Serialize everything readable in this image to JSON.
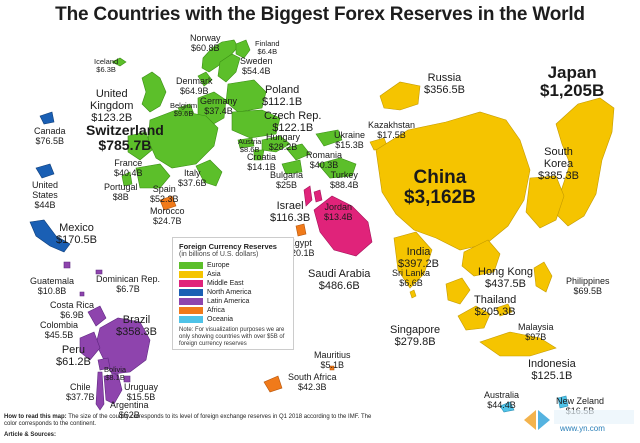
{
  "title": "The Countries with the Biggest Forex Reserves in the World",
  "legend": {
    "title": "Foreign Currency Reserves",
    "subtitle": "(in billions of U.S. dollars)",
    "items": [
      {
        "label": "Europe",
        "color": "#5cbf2a"
      },
      {
        "label": "Asia",
        "color": "#f5c400"
      },
      {
        "label": "Middle East",
        "color": "#e0237a"
      },
      {
        "label": "North America",
        "color": "#1a5fb4"
      },
      {
        "label": "Latin America",
        "color": "#8e44ad"
      },
      {
        "label": "Africa",
        "color": "#f07a1a"
      },
      {
        "label": "Oceania",
        "color": "#4fc3e8"
      }
    ],
    "note": "Note: For visualization purposes we are only showing countries with over $5B of foreign currency reserves"
  },
  "countries": [
    {
      "id": "norway",
      "name": "Norway",
      "value": "$60.8B"
    },
    {
      "id": "finland",
      "name": "Finland",
      "value": "$6.4B"
    },
    {
      "id": "iceland",
      "name": "Iceland",
      "value": "$6.3B"
    },
    {
      "id": "sweden",
      "name": "Sweden",
      "value": "$54.4B"
    },
    {
      "id": "denmark",
      "name": "Denmark",
      "value": "$64.9B"
    },
    {
      "id": "uk",
      "name": "United Kingdom",
      "value": "$123.2B"
    },
    {
      "id": "poland",
      "name": "Poland",
      "value": "$112.1B"
    },
    {
      "id": "germany",
      "name": "Germany",
      "value": "$37.4B"
    },
    {
      "id": "belgium",
      "name": "Belgium",
      "value": "$9.6B"
    },
    {
      "id": "switzerland",
      "name": "Switzerland",
      "value": "$785.7B"
    },
    {
      "id": "czech",
      "name": "Czech Rep.",
      "value": "$122.1B"
    },
    {
      "id": "austria",
      "name": "Austria",
      "value": "$8.6B"
    },
    {
      "id": "hungary",
      "name": "Hungary",
      "value": "$28.2B"
    },
    {
      "id": "ukraine",
      "name": "Ukraine",
      "value": "$15.3B"
    },
    {
      "id": "romania",
      "name": "Romania",
      "value": "$40.3B"
    },
    {
      "id": "croatia",
      "name": "Croatia",
      "value": "$14.1B"
    },
    {
      "id": "bulgaria",
      "name": "Bulgaria",
      "value": "$25B"
    },
    {
      "id": "turkey",
      "name": "Turkey",
      "value": "$88.4B"
    },
    {
      "id": "france",
      "name": "France",
      "value": "$40.4B"
    },
    {
      "id": "italy",
      "name": "Italy",
      "value": "$37.6B"
    },
    {
      "id": "portugal",
      "name": "Portugal",
      "value": "$8B"
    },
    {
      "id": "spain",
      "name": "Spain",
      "value": "$52.3B"
    },
    {
      "id": "morocco",
      "name": "Morocco",
      "value": "$24.7B"
    },
    {
      "id": "israel",
      "name": "Israel",
      "value": "$116.3B"
    },
    {
      "id": "jordan",
      "name": "Jordan",
      "value": "$13.4B"
    },
    {
      "id": "egypt",
      "name": "Egypt",
      "value": "$20.1B"
    },
    {
      "id": "saudi",
      "name": "Saudi Arabia",
      "value": "$486.6B"
    },
    {
      "id": "kazakhstan",
      "name": "Kazakhstan",
      "value": "$17.5B"
    },
    {
      "id": "russia",
      "name": "Russia",
      "value": "$356.5B"
    },
    {
      "id": "japan",
      "name": "Japan",
      "value": "$1,205B"
    },
    {
      "id": "china",
      "name": "China",
      "value": "$3,162B"
    },
    {
      "id": "southkorea",
      "name": "South Korea",
      "value": "$385.3B"
    },
    {
      "id": "india",
      "name": "India",
      "value": "$397.2B"
    },
    {
      "id": "srilanka",
      "name": "Sri Lanka",
      "value": "$6.6B"
    },
    {
      "id": "hongkong",
      "name": "Hong Kong",
      "value": "$437.5B"
    },
    {
      "id": "thailand",
      "name": "Thailand",
      "value": "$205.3B"
    },
    {
      "id": "philippines",
      "name": "Philippines",
      "value": "$69.5B"
    },
    {
      "id": "singapore",
      "name": "Singapore",
      "value": "$279.8B"
    },
    {
      "id": "malaysia",
      "name": "Malaysia",
      "value": "$97B"
    },
    {
      "id": "indonesia",
      "name": "Indonesia",
      "value": "$125.1B"
    },
    {
      "id": "australia",
      "name": "Australia",
      "value": "$44.4B"
    },
    {
      "id": "newzealand",
      "name": "New Zeland",
      "value": "$16.5B"
    },
    {
      "id": "canada",
      "name": "Canada",
      "value": "$76.5B"
    },
    {
      "id": "us",
      "name": "United States",
      "value": "$44B"
    },
    {
      "id": "mexico",
      "name": "Mexico",
      "value": "$170.5B"
    },
    {
      "id": "guatemala",
      "name": "Guatemala",
      "value": "$10.8B"
    },
    {
      "id": "dominican",
      "name": "Dominican Rep.",
      "value": "$6.7B"
    },
    {
      "id": "costarica",
      "name": "Costa Rica",
      "value": "$6.9B"
    },
    {
      "id": "colombia",
      "name": "Colombia",
      "value": "$45.5B"
    },
    {
      "id": "brazil",
      "name": "Brazil",
      "value": "$358.3B"
    },
    {
      "id": "peru",
      "name": "Peru",
      "value": "$61.2B"
    },
    {
      "id": "bolivia",
      "name": "Bolivia",
      "value": "$8.1B"
    },
    {
      "id": "chile",
      "name": "Chile",
      "value": "$37.7B"
    },
    {
      "id": "uruguay",
      "name": "Uruguay",
      "value": "$15.5B"
    },
    {
      "id": "argentina",
      "name": "Argentina",
      "value": "$62B"
    },
    {
      "id": "mauritius",
      "name": "Mauritius",
      "value": "$5.1B"
    },
    {
      "id": "southafrica",
      "name": "South Africa",
      "value": "$42.3B"
    }
  ],
  "howto": {
    "lead": "How to read this map:",
    "text": "The size of the country corresponds to its level of foreign exchange reserves in Q1 2018 according to the IMF. The color corresponds to the continent."
  },
  "sources": "Article & Sources:",
  "watermark": {
    "text": "www.yn.com"
  }
}
